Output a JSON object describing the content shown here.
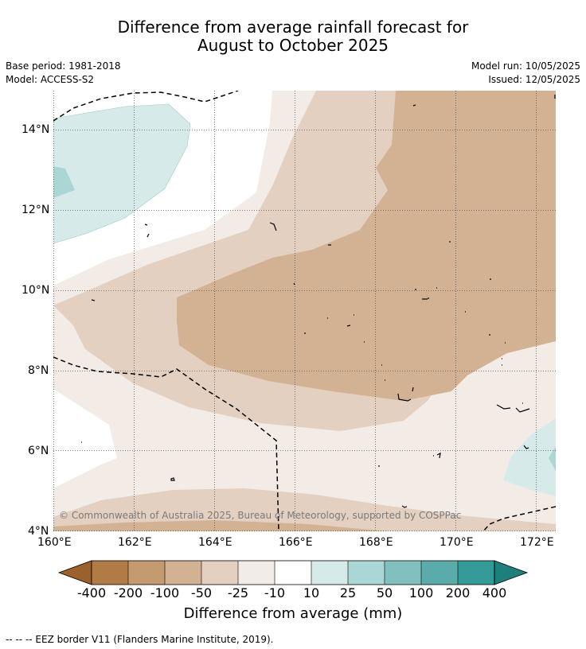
{
  "title_line1": "Difference from average rainfall forecast for",
  "title_line2": "August to October 2025",
  "base_period": "Base period: 1981-2018",
  "model": "Model: ACCESS-S2",
  "model_run": "Model run: 10/05/2025",
  "issued": "Issued: 12/05/2025",
  "copyright": "© Commonwealth of Australia 2025, Bureau of Meteorology, supported by COSPPac",
  "footer": "--  --  -- EEZ border V11 (Flanders Marine Institute, 2019).",
  "colorbar_title": "Difference from average (mm)",
  "colors": {
    "-400": "#9a612b",
    "-200": "#b27a44",
    "-100": "#c49a70",
    "-50": "#d3b294",
    "-25": "#e3d0c0",
    "-10": "#f3ebe6",
    "0": "#ffffff",
    "10": "#d6eae9",
    "25": "#aad6d5",
    "50": "#82c0c0",
    "100": "#5aacaa",
    "200": "#349a97",
    "400": "#1f7f7c"
  },
  "chart_data": {
    "type": "heatmap",
    "title": "Difference from average rainfall forecast for August to October 2025",
    "x_axis": {
      "ticks": [
        "160°E",
        "162°E",
        "164°E",
        "166°E",
        "168°E",
        "170°E",
        "172°E"
      ],
      "range": [
        160,
        172.5
      ]
    },
    "y_axis": {
      "ticks": [
        "4°N",
        "6°N",
        "8°N",
        "10°N",
        "12°N",
        "14°N"
      ],
      "range": [
        4,
        15
      ]
    },
    "grid": true,
    "colorbar": {
      "labels": [
        "-400",
        "-200",
        "-100",
        "-50",
        "-25",
        "-10",
        "10",
        "25",
        "50",
        "100",
        "200",
        "400"
      ],
      "title": "Difference from average (mm)",
      "extend": "both"
    }
  }
}
